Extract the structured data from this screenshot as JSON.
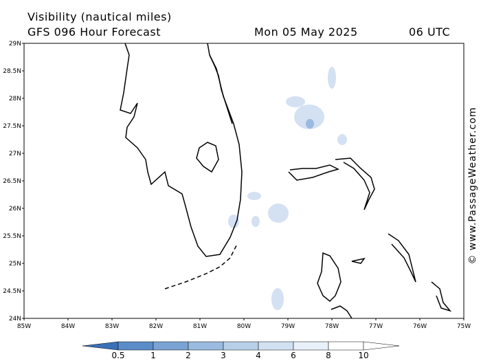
{
  "header": {
    "title": "Visibility (nautical miles)",
    "model": "GFS 096 Hour Forecast",
    "date": "Mon 05 May 2025",
    "time": "06 UTC"
  },
  "map": {
    "lat_labels": [
      "29N",
      "28.5N",
      "28N",
      "27.5N",
      "27N",
      "26.5N",
      "26N",
      "25.5N",
      "25N",
      "24.5N",
      "24N"
    ],
    "lon_labels": [
      "85W",
      "84W",
      "83W",
      "82W",
      "81W",
      "80W",
      "79W",
      "78W",
      "77W",
      "76W",
      "75W"
    ]
  },
  "colorbar": {
    "labels": [
      "0.5",
      "1",
      "2",
      "3",
      "4",
      "6",
      "8",
      "10"
    ],
    "colors": [
      "#3a70b8",
      "#5a8cc8",
      "#7aa3d3",
      "#9bbadf",
      "#b8cfe9",
      "#d2e1f2",
      "#e8f0f9",
      "#ffffff"
    ]
  },
  "watermark": "© www.PassageWeather.com"
}
